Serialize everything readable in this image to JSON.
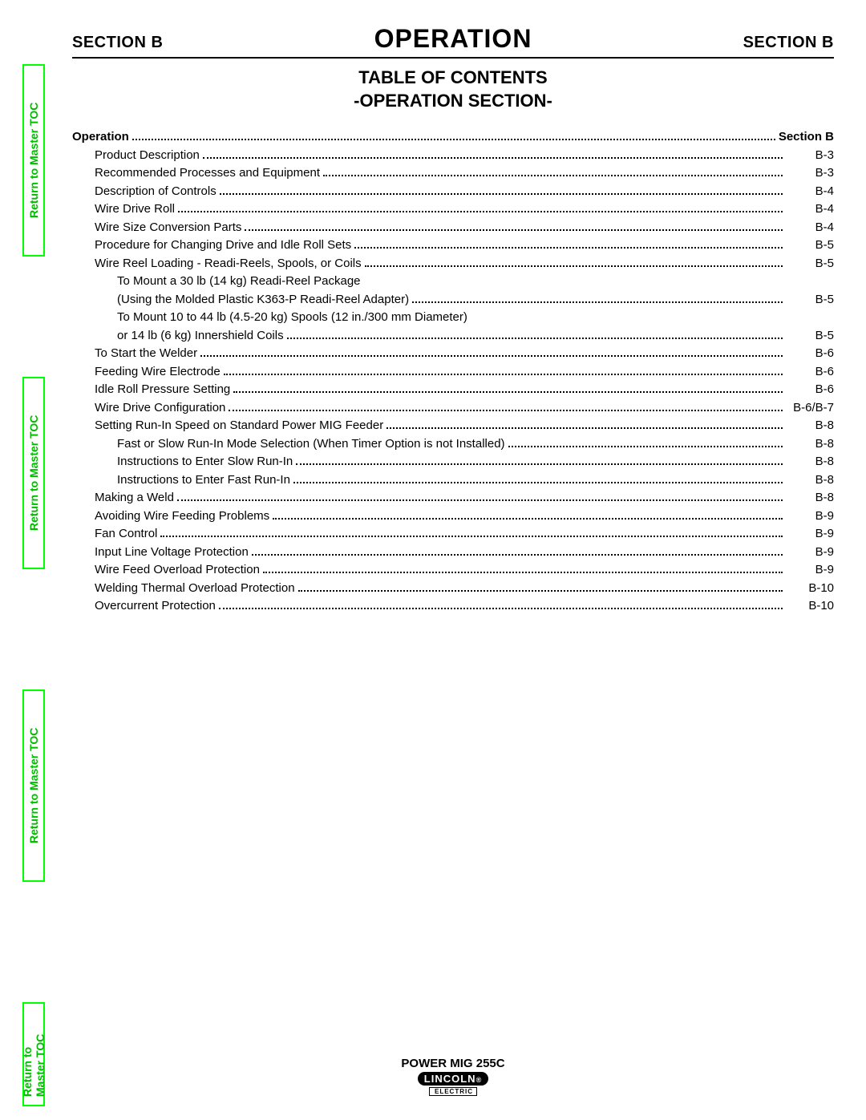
{
  "side_tabs": {
    "label": "Return to Master TOC",
    "border_color": "#00ff00",
    "text_color": "#00bb00"
  },
  "header": {
    "left": "SECTION B",
    "center": "OPERATION",
    "right": "SECTION B"
  },
  "subtitle_line1": "TABLE OF CONTENTS",
  "subtitle_line2": "-OPERATION SECTION-",
  "toc_header": {
    "label": "Operation",
    "page": "Section B"
  },
  "toc": [
    {
      "indent": 1,
      "label": "Product Description",
      "page": "B-3"
    },
    {
      "indent": 1,
      "label": "Recommended Processes and Equipment",
      "page": "B-3"
    },
    {
      "indent": 1,
      "label": "Description of Controls",
      "page": "B-4"
    },
    {
      "indent": 1,
      "label": "Wire Drive Roll",
      "page": "B-4"
    },
    {
      "indent": 1,
      "label": "Wire Size Conversion Parts",
      "page": "B-4"
    },
    {
      "indent": 1,
      "label": "Procedure for Changing Drive and Idle Roll Sets",
      "page": "B-5"
    },
    {
      "indent": 1,
      "label": "Wire Reel Loading - Readi-Reels, Spools, or Coils",
      "page": "B-5"
    },
    {
      "indent": 2,
      "label": "To Mount a 30 lb (14 kg) Readi-Reel Package",
      "page": "",
      "nodots": true
    },
    {
      "indent": 2,
      "label": "(Using the Molded Plastic K363-P Readi-Reel Adapter)",
      "page": "B-5"
    },
    {
      "indent": 2,
      "label": "To Mount 10 to 44 lb (4.5-20 kg) Spools (12 in./300 mm Diameter)",
      "page": "",
      "nodots": true
    },
    {
      "indent": 2,
      "label": "or 14 lb (6 kg) Innershield Coils",
      "page": "B-5"
    },
    {
      "indent": 1,
      "label": "To Start the Welder",
      "page": "B-6"
    },
    {
      "indent": 1,
      "label": "Feeding Wire Electrode",
      "page": "B-6"
    },
    {
      "indent": 1,
      "label": "Idle Roll Pressure Setting",
      "page": "B-6"
    },
    {
      "indent": 1,
      "label": "Wire Drive Configuration",
      "page": "B-6/B-7"
    },
    {
      "indent": 1,
      "label": "Setting Run-In Speed on Standard Power MIG Feeder",
      "page": "B-8"
    },
    {
      "indent": 2,
      "label": "Fast or Slow Run-In Mode Selection (When Timer Option is not Installed)",
      "page": "B-8"
    },
    {
      "indent": 2,
      "label": "Instructions to Enter Slow Run-In",
      "page": "B-8"
    },
    {
      "indent": 2,
      "label": "Instructions to Enter Fast Run-In",
      "page": "B-8"
    },
    {
      "indent": 1,
      "label": "Making a Weld",
      "page": "B-8"
    },
    {
      "indent": 1,
      "label": "Avoiding Wire Feeding Problems",
      "page": "B-9"
    },
    {
      "indent": 1,
      "label": "Fan Control",
      "page": "B-9"
    },
    {
      "indent": 1,
      "label": "Input Line Voltage Protection",
      "page": "B-9"
    },
    {
      "indent": 1,
      "label": "Wire Feed Overload Protection",
      "page": "B-9"
    },
    {
      "indent": 1,
      "label": "Welding Thermal Overload Protection",
      "page": "B-10"
    },
    {
      "indent": 1,
      "label": "Overcurrent Protection",
      "page": "B-10"
    }
  ],
  "footer": {
    "model": "POWER MIG 255C",
    "logo_main": "LINCOLN",
    "logo_sub": "ELECTRIC"
  },
  "styling": {
    "page_bg": "#ffffff",
    "text_color": "#000000",
    "rule_color": "#000000",
    "title_fontsize_pt": 24,
    "section_fontsize_pt": 15,
    "body_fontsize_pt": 11,
    "font_family": "Arial, Helvetica, sans-serif"
  }
}
